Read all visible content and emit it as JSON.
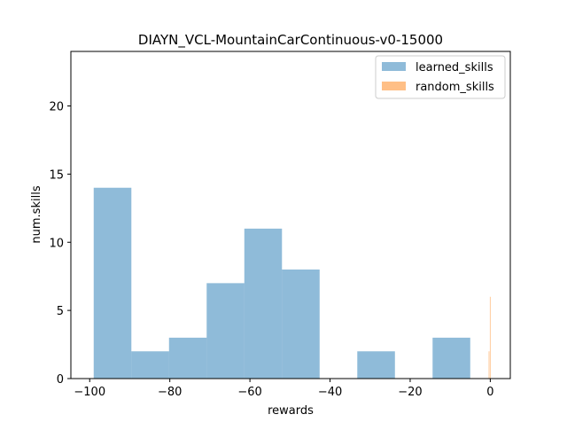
{
  "chart_data": {
    "type": "bar",
    "title": "DIAYN_VCL-MountainCarContinuous-v0-15000",
    "xlabel": "rewards",
    "ylabel": "num.skills",
    "xlim": [
      -104.7,
      5.0
    ],
    "ylim": [
      0,
      24
    ],
    "x_ticks": [
      -100,
      -80,
      -60,
      -40,
      -20,
      0
    ],
    "x_tick_labels": [
      "−100",
      "−80",
      "−60",
      "−40",
      "−20",
      "0"
    ],
    "y_ticks": [
      0,
      5,
      10,
      15,
      20
    ],
    "y_tick_labels": [
      "0",
      "5",
      "10",
      "15",
      "20"
    ],
    "grid": false,
    "legend_position": "top-right",
    "series": [
      {
        "name": "learned_skills",
        "color": "#1f77b4",
        "alpha": 0.5,
        "bin_edges": [
          -99.0,
          -89.6,
          -80.2,
          -70.8,
          -61.4,
          -52.0,
          -42.6,
          -33.2,
          -23.8,
          -14.4,
          -5.0
        ],
        "counts": [
          14,
          2,
          3,
          7,
          11,
          8,
          0,
          2,
          0,
          3
        ]
      },
      {
        "name": "random_skills",
        "color": "#ff7f0e",
        "alpha": 0.5,
        "bin_edges": [
          -0.4,
          -0.3,
          -0.2,
          -0.1,
          0.0,
          0.1
        ],
        "counts": [
          2,
          0,
          0,
          6,
          0
        ]
      }
    ]
  }
}
